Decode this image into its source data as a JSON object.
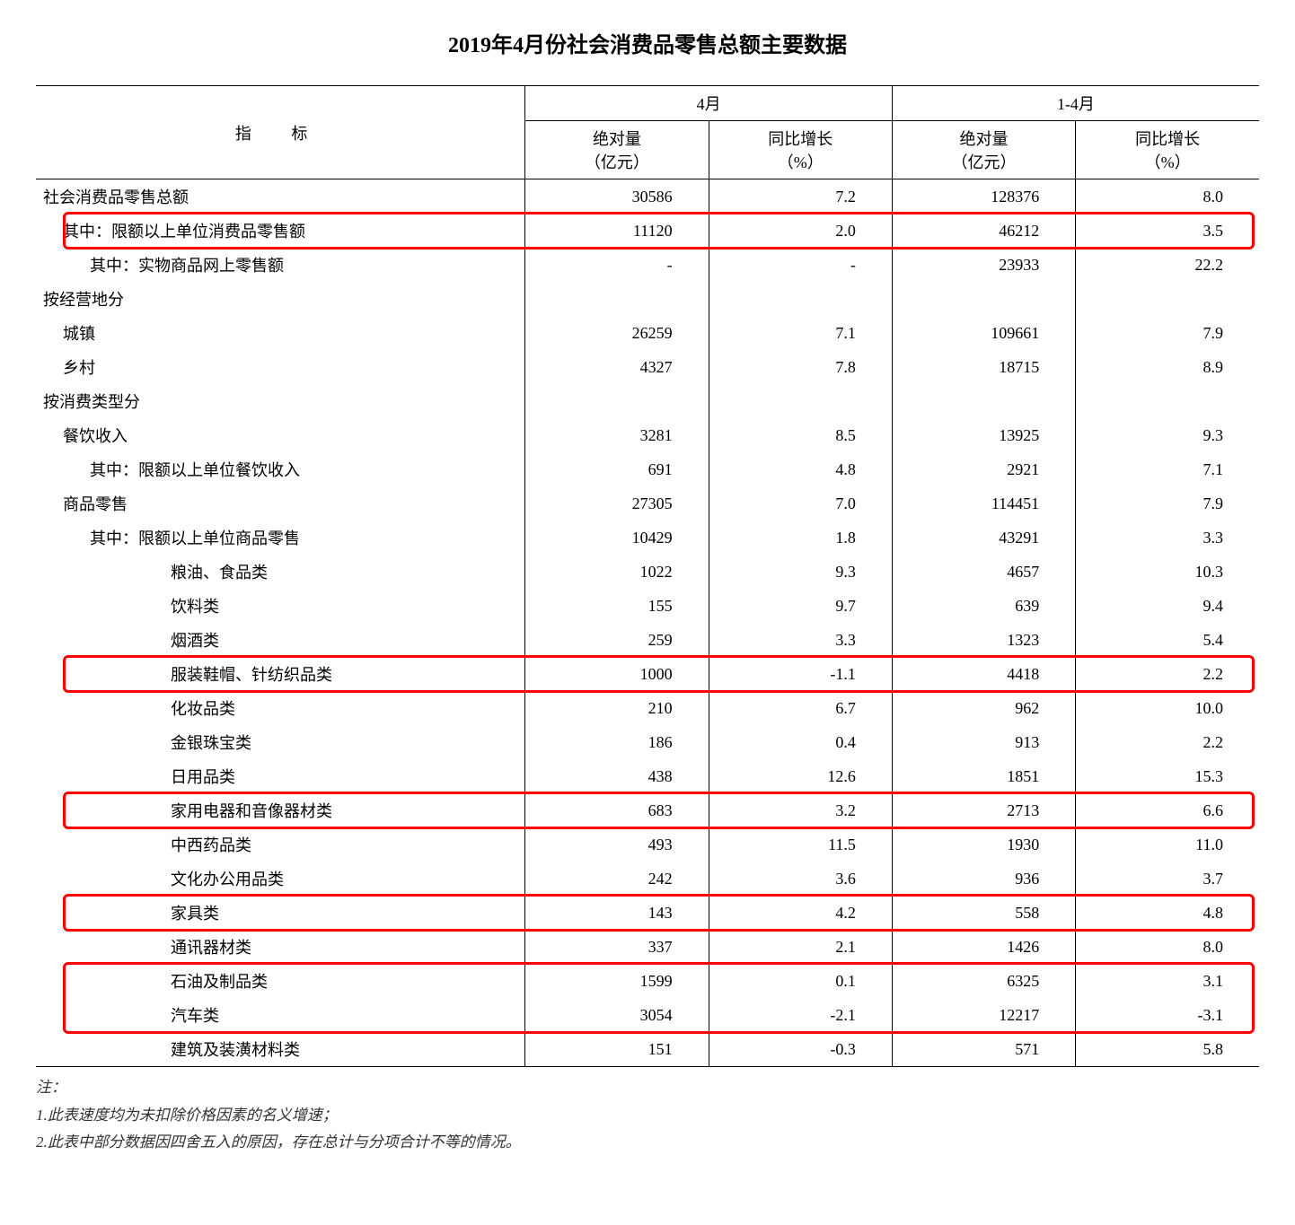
{
  "title": "2019年4月份社会消费品零售总额主要数据",
  "headers": {
    "indicator": "指 标",
    "period1": "4月",
    "period2": "1-4月",
    "absolute": "绝对量\n（亿元）",
    "growth": "同比增长\n（%）"
  },
  "highlight_color": "#ff0000",
  "rows": [
    {
      "label": "社会消费品零售总额",
      "indent": 0,
      "v": [
        "30586",
        "7.2",
        "128376",
        "8.0"
      ],
      "hl": false
    },
    {
      "label": "其中：限额以上单位消费品零售额",
      "indent": 1,
      "v": [
        "11120",
        "2.0",
        "46212",
        "3.5"
      ],
      "hl": true
    },
    {
      "label": "其中：实物商品网上零售额",
      "indent": 2,
      "v": [
        "-",
        "-",
        "23933",
        "22.2"
      ],
      "hl": false
    },
    {
      "label": "按经营地分",
      "indent": 0,
      "v": [
        "",
        "",
        "",
        ""
      ],
      "hl": false
    },
    {
      "label": "城镇",
      "indent": 1,
      "v": [
        "26259",
        "7.1",
        "109661",
        "7.9"
      ],
      "hl": false
    },
    {
      "label": "乡村",
      "indent": 1,
      "v": [
        "4327",
        "7.8",
        "18715",
        "8.9"
      ],
      "hl": false
    },
    {
      "label": "按消费类型分",
      "indent": 0,
      "v": [
        "",
        "",
        "",
        ""
      ],
      "hl": false
    },
    {
      "label": "餐饮收入",
      "indent": 1,
      "v": [
        "3281",
        "8.5",
        "13925",
        "9.3"
      ],
      "hl": false
    },
    {
      "label": "其中：限额以上单位餐饮收入",
      "indent": 2,
      "v": [
        "691",
        "4.8",
        "2921",
        "7.1"
      ],
      "hl": false
    },
    {
      "label": "商品零售",
      "indent": 1,
      "v": [
        "27305",
        "7.0",
        "114451",
        "7.9"
      ],
      "hl": false
    },
    {
      "label": "其中：限额以上单位商品零售",
      "indent": 2,
      "v": [
        "10429",
        "1.8",
        "43291",
        "3.3"
      ],
      "hl": false
    },
    {
      "label": "粮油、食品类",
      "indent": 4,
      "v": [
        "1022",
        "9.3",
        "4657",
        "10.3"
      ],
      "hl": false
    },
    {
      "label": "饮料类",
      "indent": 4,
      "v": [
        "155",
        "9.7",
        "639",
        "9.4"
      ],
      "hl": false
    },
    {
      "label": "烟酒类",
      "indent": 4,
      "v": [
        "259",
        "3.3",
        "1323",
        "5.4"
      ],
      "hl": false
    },
    {
      "label": "服装鞋帽、针纺织品类",
      "indent": 4,
      "v": [
        "1000",
        "-1.1",
        "4418",
        "2.2"
      ],
      "hl": true
    },
    {
      "label": "化妆品类",
      "indent": 4,
      "v": [
        "210",
        "6.7",
        "962",
        "10.0"
      ],
      "hl": false
    },
    {
      "label": "金银珠宝类",
      "indent": 4,
      "v": [
        "186",
        "0.4",
        "913",
        "2.2"
      ],
      "hl": false
    },
    {
      "label": "日用品类",
      "indent": 4,
      "v": [
        "438",
        "12.6",
        "1851",
        "15.3"
      ],
      "hl": false
    },
    {
      "label": "家用电器和音像器材类",
      "indent": 4,
      "v": [
        "683",
        "3.2",
        "2713",
        "6.6"
      ],
      "hl": true
    },
    {
      "label": "中西药品类",
      "indent": 4,
      "v": [
        "493",
        "11.5",
        "1930",
        "11.0"
      ],
      "hl": false
    },
    {
      "label": "文化办公用品类",
      "indent": 4,
      "v": [
        "242",
        "3.6",
        "936",
        "3.7"
      ],
      "hl": false
    },
    {
      "label": "家具类",
      "indent": 4,
      "v": [
        "143",
        "4.2",
        "558",
        "4.8"
      ],
      "hl": true
    },
    {
      "label": "通讯器材类",
      "indent": 4,
      "v": [
        "337",
        "2.1",
        "1426",
        "8.0"
      ],
      "hl": false
    },
    {
      "label": "石油及制品类",
      "indent": 4,
      "v": [
        "1599",
        "0.1",
        "6325",
        "3.1"
      ],
      "hl": true,
      "hl_group_start": true
    },
    {
      "label": "汽车类",
      "indent": 4,
      "v": [
        "3054",
        "-2.1",
        "12217",
        "-3.1"
      ],
      "hl": true,
      "hl_group_end": true
    },
    {
      "label": "建筑及装潢材料类",
      "indent": 4,
      "v": [
        "151",
        "-0.3",
        "571",
        "5.8"
      ],
      "hl": false
    }
  ],
  "footnotes": {
    "intro": "注：",
    "n1": "1.此表速度均为未扣除价格因素的名义增速；",
    "n2": "2.此表中部分数据因四舍五入的原因，存在总计与分项合计不等的情况。"
  },
  "col_widths": [
    "40%",
    "15%",
    "15%",
    "15%",
    "15%"
  ]
}
